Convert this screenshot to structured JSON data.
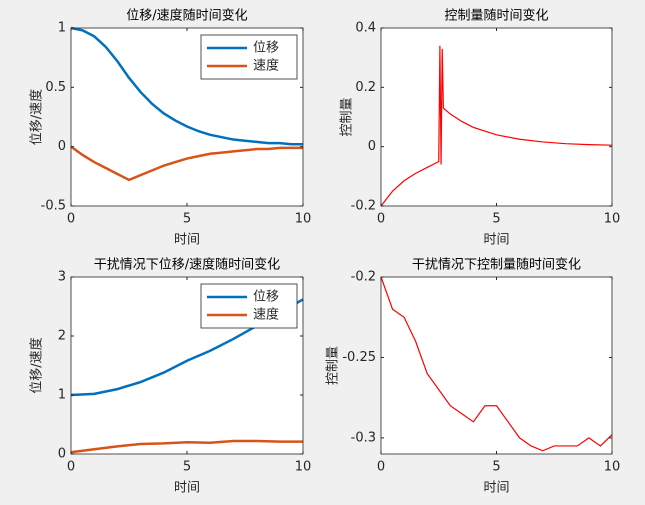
{
  "chart_data": [
    {
      "type": "line",
      "title": "位移/速度随时间变化",
      "xlabel": "时间",
      "ylabel": "位移/速度",
      "x": [
        0,
        0.5,
        1,
        1.5,
        2,
        2.5,
        3,
        3.5,
        4,
        4.5,
        5,
        5.5,
        6,
        6.5,
        7,
        7.5,
        8,
        8.5,
        9,
        9.5,
        10
      ],
      "xlim": [
        0,
        10
      ],
      "xticks": [
        0,
        5,
        10
      ],
      "ylim": [
        -0.5,
        1
      ],
      "yticks": [
        -0.5,
        0,
        0.5,
        1
      ],
      "legend": "northeast",
      "series": [
        {
          "name": "位移",
          "color": "#0072bd",
          "values": [
            1.0,
            0.98,
            0.93,
            0.84,
            0.72,
            0.58,
            0.46,
            0.36,
            0.28,
            0.22,
            0.17,
            0.13,
            0.1,
            0.08,
            0.06,
            0.05,
            0.04,
            0.03,
            0.03,
            0.02,
            0.02
          ]
        },
        {
          "name": "速度",
          "color": "#d95319",
          "values": [
            0,
            -0.07,
            -0.13,
            -0.18,
            -0.23,
            -0.28,
            -0.24,
            -0.2,
            -0.16,
            -0.13,
            -0.1,
            -0.08,
            -0.06,
            -0.05,
            -0.04,
            -0.03,
            -0.02,
            -0.02,
            -0.01,
            -0.01,
            -0.01
          ]
        }
      ]
    },
    {
      "type": "line",
      "title": "控制量随时间变化",
      "xlabel": "时间",
      "ylabel": "控制量",
      "x": [
        0,
        0.5,
        1,
        1.5,
        2,
        2.5,
        2.55,
        2.6,
        2.65,
        2.7,
        3,
        3.5,
        4,
        5,
        6,
        7,
        8,
        9,
        10
      ],
      "xlim": [
        0,
        10
      ],
      "xticks": [
        0,
        5,
        10
      ],
      "ylim": [
        -0.2,
        0.4
      ],
      "yticks": [
        -0.2,
        0,
        0.2,
        0.4
      ],
      "series": [
        {
          "color": "#ff0000",
          "values": [
            -0.2,
            -0.15,
            -0.115,
            -0.09,
            -0.07,
            -0.05,
            0.34,
            -0.06,
            0.33,
            0.13,
            0.11,
            0.085,
            0.065,
            0.04,
            0.025,
            0.016,
            0.01,
            0.007,
            0.005
          ]
        }
      ]
    },
    {
      "type": "line",
      "title": "干扰情况下位移/速度随时间变化",
      "xlabel": "时间",
      "ylabel": "位移/速度",
      "x": [
        0,
        1,
        2,
        3,
        4,
        5,
        6,
        7,
        8,
        9,
        10
      ],
      "xlim": [
        0,
        10
      ],
      "xticks": [
        0,
        5,
        10
      ],
      "ylim": [
        0,
        3
      ],
      "yticks": [
        0,
        1,
        2,
        3
      ],
      "legend": "northeast",
      "series": [
        {
          "name": "位移",
          "color": "#0072bd",
          "values": [
            1.0,
            1.02,
            1.1,
            1.22,
            1.38,
            1.58,
            1.75,
            1.95,
            2.17,
            2.4,
            2.62
          ]
        },
        {
          "name": "速度",
          "color": "#d95319",
          "values": [
            0.03,
            0.08,
            0.13,
            0.17,
            0.18,
            0.2,
            0.19,
            0.22,
            0.22,
            0.21,
            0.21
          ]
        }
      ]
    },
    {
      "type": "line",
      "title": "干扰情况下控制量随时间变化",
      "xlabel": "时间",
      "ylabel": "控制量",
      "x": [
        0,
        0.5,
        1,
        1.5,
        2,
        2.5,
        3,
        3.5,
        4,
        4.5,
        5,
        5.5,
        6,
        6.5,
        7,
        7.5,
        8,
        8.5,
        9,
        9.5,
        10
      ],
      "xlim": [
        0,
        10
      ],
      "xticks": [
        0,
        5,
        10
      ],
      "ylim": [
        -0.31,
        -0.2
      ],
      "yticks": [
        -0.3,
        -0.25,
        -0.2
      ],
      "series": [
        {
          "color": "#ff0000",
          "values": [
            -0.2,
            -0.22,
            -0.225,
            -0.24,
            -0.26,
            -0.27,
            -0.28,
            -0.285,
            -0.29,
            -0.28,
            -0.28,
            -0.29,
            -0.3,
            -0.305,
            -0.308,
            -0.305,
            -0.305,
            -0.305,
            -0.3,
            -0.305,
            -0.298
          ]
        }
      ]
    }
  ]
}
